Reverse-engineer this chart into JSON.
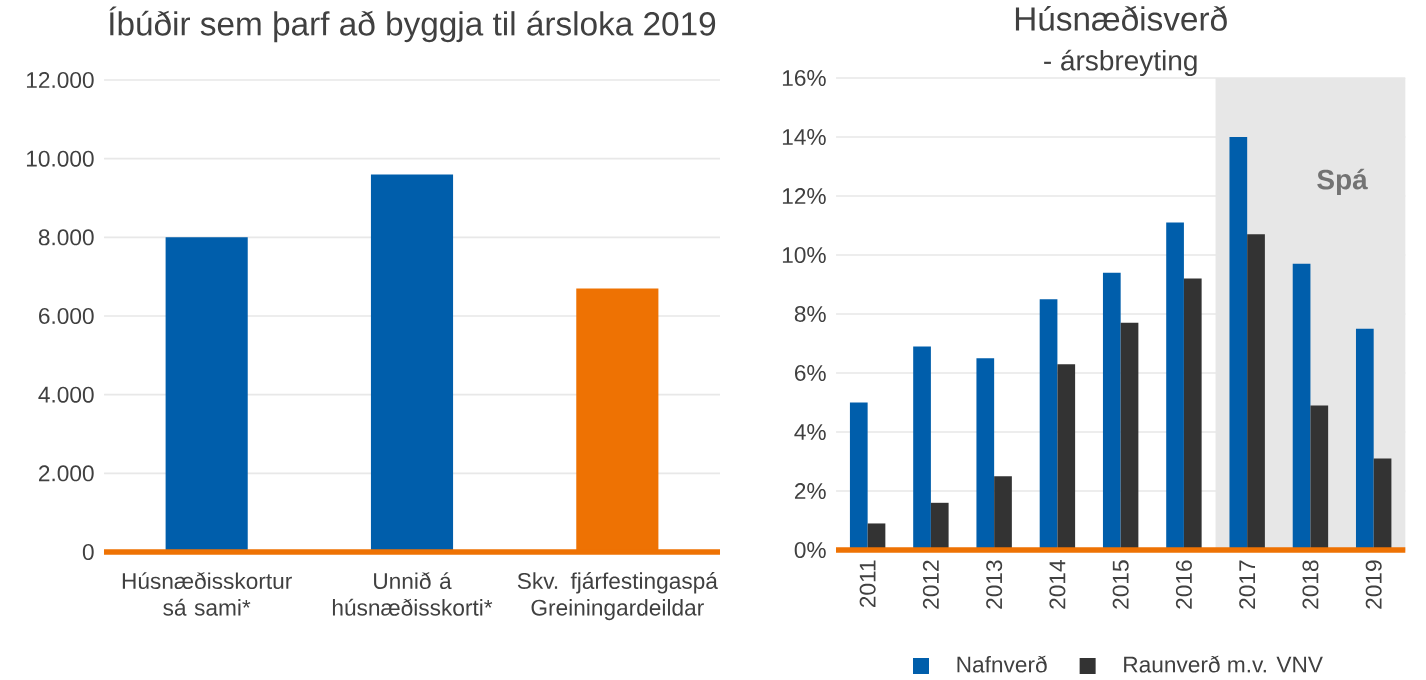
{
  "chart_data": [
    {
      "type": "bar",
      "title": "Íbúðir sem þarf að byggja til ársloka 2019",
      "categories": [
        "Húsnæðisskortur sá sami*",
        "Unnið á húsnæðisskorti*",
        "Skv. fjárfestingaspá Greiningardeildar"
      ],
      "values": [
        8000,
        9600,
        6700
      ],
      "colors": [
        "#005eab",
        "#005eab",
        "#ee7203"
      ],
      "ylim": [
        0,
        12000
      ],
      "yticks": [
        0,
        {
          "value": 2000,
          "label": "2.000"
        },
        {
          "value": 4000,
          "label": "4.000"
        },
        {
          "value": 6000,
          "label": "6.000"
        },
        {
          "value": 8000,
          "label": "8.000"
        },
        {
          "value": 10000,
          "label": "10.000"
        },
        {
          "value": 12000,
          "label": "12.000"
        }
      ],
      "grid": "y"
    },
    {
      "type": "bar",
      "title": "Húsnæðisverð",
      "subtitle": "- ársbreyting",
      "categories": [
        "2011",
        "2012",
        "2013",
        "2014",
        "2015",
        "2016",
        "2017",
        "2018",
        "2019"
      ],
      "series": [
        {
          "name": "Nafnverð",
          "color": "#005eab",
          "values": [
            5.0,
            6.9,
            6.5,
            8.5,
            9.4,
            11.1,
            14.0,
            9.7,
            7.5
          ]
        },
        {
          "name": "Raunverð m.v. VNV",
          "color": "#333333",
          "values": [
            0.9,
            1.6,
            2.5,
            6.3,
            7.7,
            9.2,
            10.7,
            4.9,
            3.1
          ]
        }
      ],
      "ylim": [
        0,
        16
      ],
      "yticks": [
        {
          "value": 0,
          "label": "0%"
        },
        {
          "value": 2,
          "label": "2%"
        },
        {
          "value": 4,
          "label": "4%"
        },
        {
          "value": 6,
          "label": "6%"
        },
        {
          "value": 8,
          "label": "8%"
        },
        {
          "value": 10,
          "label": "10%"
        },
        {
          "value": 12,
          "label": "12%"
        },
        {
          "value": 14,
          "label": "14%"
        },
        {
          "value": 16,
          "label": "16%"
        }
      ],
      "bands": [
        {
          "axis": "x",
          "from": "2017",
          "to": "2019",
          "label": "Spá",
          "color": "#e7e7e7"
        }
      ],
      "grid": "y",
      "legend": "bottom"
    }
  ]
}
